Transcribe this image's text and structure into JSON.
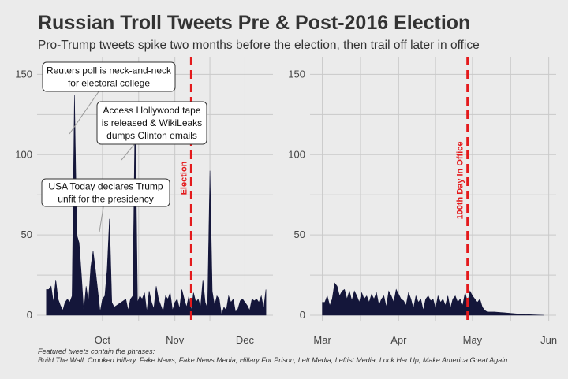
{
  "title": "Russian Troll Tweets Pre & Post-2016 Election",
  "subtitle": "Pro-Trump tweets spike two months before the election, then trail off later in office",
  "footnote": {
    "line1": "Featured tweets contain the phrases:",
    "line2": "Build The Wall, Crooked Hillary, Fake News, Fake News Media, Hillary For Prison, Left Media, Leftist Media, Lock Her Up, Make America Great Again."
  },
  "colors": {
    "area": "#14163a",
    "vline": "#e41a1c",
    "background": "#ebebeb",
    "grid": "#c9c9c9"
  },
  "chart_data": [
    {
      "type": "area",
      "panel": "pre-election",
      "x_tick_labels": [
        "Oct",
        "Nov",
        "Dec"
      ],
      "y_ticks": [
        0,
        50,
        100,
        150
      ],
      "ylim": [
        0,
        160
      ],
      "grid": true,
      "x": [
        "2016-09-07",
        "2016-09-08",
        "2016-09-09",
        "2016-09-10",
        "2016-09-11",
        "2016-09-12",
        "2016-09-13",
        "2016-09-14",
        "2016-09-15",
        "2016-09-16",
        "2016-09-17",
        "2016-09-18",
        "2016-09-19",
        "2016-09-20",
        "2016-09-21",
        "2016-09-22",
        "2016-09-23",
        "2016-09-24",
        "2016-09-25",
        "2016-09-26",
        "2016-09-27",
        "2016-09-28",
        "2016-09-29",
        "2016-09-30",
        "2016-10-01",
        "2016-10-02",
        "2016-10-03",
        "2016-10-04",
        "2016-10-05",
        "2016-10-06",
        "2016-10-07",
        "2016-10-08",
        "2016-10-09",
        "2016-10-10",
        "2016-10-11",
        "2016-10-12",
        "2016-10-13",
        "2016-10-14",
        "2016-10-15",
        "2016-10-16",
        "2016-10-17",
        "2016-10-18",
        "2016-10-19",
        "2016-10-20",
        "2016-10-21",
        "2016-10-22",
        "2016-10-23",
        "2016-10-24",
        "2016-10-25",
        "2016-10-26",
        "2016-10-27",
        "2016-10-28",
        "2016-10-29",
        "2016-10-30",
        "2016-10-31",
        "2016-11-01",
        "2016-11-02",
        "2016-11-03",
        "2016-11-04",
        "2016-11-05",
        "2016-11-06",
        "2016-11-07",
        "2016-11-08",
        "2016-11-09",
        "2016-11-10",
        "2016-11-11",
        "2016-11-12",
        "2016-11-13",
        "2016-11-14",
        "2016-11-15",
        "2016-11-16",
        "2016-11-17",
        "2016-11-18",
        "2016-11-19",
        "2016-11-20",
        "2016-11-21",
        "2016-11-22",
        "2016-11-23",
        "2016-11-24",
        "2016-11-25",
        "2016-11-26",
        "2016-11-27",
        "2016-11-28",
        "2016-11-29",
        "2016-11-30",
        "2016-12-01",
        "2016-12-02",
        "2016-12-03",
        "2016-12-04",
        "2016-12-05",
        "2016-12-06",
        "2016-12-07",
        "2016-12-08",
        "2016-12-09",
        "2016-12-10"
      ],
      "values": [
        16,
        16,
        18,
        8,
        22,
        10,
        6,
        3,
        8,
        10,
        8,
        12,
        137,
        50,
        45,
        25,
        2,
        18,
        8,
        30,
        40,
        28,
        15,
        2,
        10,
        12,
        28,
        60,
        8,
        5,
        6,
        7,
        8,
        9,
        10,
        3,
        10,
        12,
        130,
        8,
        12,
        10,
        14,
        2,
        15,
        8,
        4,
        18,
        10,
        6,
        2,
        12,
        10,
        14,
        3,
        8,
        10,
        4,
        16,
        10,
        5,
        12,
        3,
        14,
        8,
        10,
        5,
        22,
        8,
        4,
        90,
        15,
        6,
        12,
        10,
        0,
        5,
        3,
        12,
        8,
        10,
        2,
        4,
        9,
        10,
        8,
        6,
        3,
        10,
        9,
        10,
        8,
        12,
        4,
        16
      ],
      "vline": {
        "date": "2016-11-08",
        "label": "Election"
      },
      "annotations": [
        {
          "text": [
            "Reuters poll is neck-and-neck",
            "for electoral college"
          ],
          "date": "2016-09-19"
        },
        {
          "text": [
            "Access Hollywood tape",
            "is released & WikiLeaks",
            "dumps Clinton emails"
          ],
          "date": "2016-10-07"
        },
        {
          "text": [
            "USA Today declares Trump",
            "unfit for the presidency"
          ],
          "date": "2016-09-29"
        }
      ]
    },
    {
      "type": "area",
      "panel": "post-inauguration",
      "x_tick_labels": [
        "Mar",
        "Apr",
        "May",
        "Jun"
      ],
      "y_ticks": [
        0,
        50,
        100,
        150
      ],
      "ylim": [
        0,
        160
      ],
      "grid": true,
      "x": [
        "2017-03-01",
        "2017-03-02",
        "2017-03-03",
        "2017-03-04",
        "2017-03-05",
        "2017-03-06",
        "2017-03-07",
        "2017-03-08",
        "2017-03-09",
        "2017-03-10",
        "2017-03-11",
        "2017-03-12",
        "2017-03-13",
        "2017-03-14",
        "2017-03-15",
        "2017-03-16",
        "2017-03-17",
        "2017-03-18",
        "2017-03-19",
        "2017-03-20",
        "2017-03-21",
        "2017-03-22",
        "2017-03-23",
        "2017-03-24",
        "2017-03-25",
        "2017-03-26",
        "2017-03-27",
        "2017-03-28",
        "2017-03-29",
        "2017-03-30",
        "2017-03-31",
        "2017-04-01",
        "2017-04-02",
        "2017-04-03",
        "2017-04-04",
        "2017-04-05",
        "2017-04-06",
        "2017-04-07",
        "2017-04-08",
        "2017-04-09",
        "2017-04-10",
        "2017-04-11",
        "2017-04-12",
        "2017-04-13",
        "2017-04-14",
        "2017-04-15",
        "2017-04-16",
        "2017-04-17",
        "2017-04-18",
        "2017-04-19",
        "2017-04-20",
        "2017-04-21",
        "2017-04-22",
        "2017-04-23",
        "2017-04-24",
        "2017-04-25",
        "2017-04-26",
        "2017-04-27",
        "2017-04-28",
        "2017-04-29",
        "2017-04-30",
        "2017-05-01",
        "2017-05-02",
        "2017-05-03",
        "2017-05-04",
        "2017-05-05",
        "2017-05-06",
        "2017-05-07",
        "2017-05-10",
        "2017-05-14",
        "2017-05-18",
        "2017-05-22",
        "2017-05-26",
        "2017-05-30"
      ],
      "values": [
        8,
        8,
        12,
        6,
        10,
        20,
        18,
        12,
        15,
        16,
        10,
        15,
        9,
        15,
        12,
        8,
        14,
        10,
        12,
        8,
        13,
        10,
        14,
        6,
        10,
        12,
        5,
        15,
        12,
        8,
        16,
        13,
        10,
        9,
        6,
        14,
        10,
        4,
        12,
        8,
        10,
        3,
        10,
        12,
        9,
        10,
        4,
        12,
        8,
        10,
        6,
        12,
        4,
        10,
        12,
        8,
        10,
        6,
        14,
        8,
        15,
        12,
        10,
        8,
        10,
        5,
        3,
        2,
        2,
        1.5,
        1,
        0.5,
        0.2,
        0
      ],
      "vline": {
        "date": "2017-04-29",
        "label": "100th Day In Office"
      }
    }
  ]
}
